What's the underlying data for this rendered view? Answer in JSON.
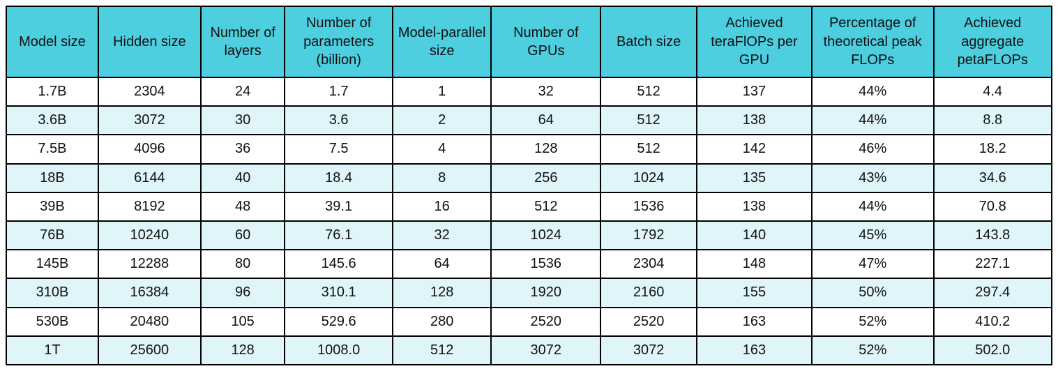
{
  "table": {
    "columns": [
      "Model size",
      "Hidden size",
      "Number of layers",
      "Number of parameters (billion)",
      "Model-parallel size",
      "Number of GPUs",
      "Batch size",
      "Achieved teraFlOPs per GPU",
      "Percentage of theoretical peak FLOPs",
      "Achieved aggregate petaFLOPs"
    ],
    "rows": [
      [
        "1.7B",
        "2304",
        "24",
        "1.7",
        "1",
        "32",
        "512",
        "137",
        "44%",
        "4.4"
      ],
      [
        "3.6B",
        "3072",
        "30",
        "3.6",
        "2",
        "64",
        "512",
        "138",
        "44%",
        "8.8"
      ],
      [
        "7.5B",
        "4096",
        "36",
        "7.5",
        "4",
        "128",
        "512",
        "142",
        "46%",
        "18.2"
      ],
      [
        "18B",
        "6144",
        "40",
        "18.4",
        "8",
        "256",
        "1024",
        "135",
        "43%",
        "34.6"
      ],
      [
        "39B",
        "8192",
        "48",
        "39.1",
        "16",
        "512",
        "1536",
        "138",
        "44%",
        "70.8"
      ],
      [
        "76B",
        "10240",
        "60",
        "76.1",
        "32",
        "1024",
        "1792",
        "140",
        "45%",
        "143.8"
      ],
      [
        "145B",
        "12288",
        "80",
        "145.6",
        "64",
        "1536",
        "2304",
        "148",
        "47%",
        "227.1"
      ],
      [
        "310B",
        "16384",
        "96",
        "310.1",
        "128",
        "1920",
        "2160",
        "155",
        "50%",
        "297.4"
      ],
      [
        "530B",
        "20480",
        "105",
        "529.6",
        "280",
        "2520",
        "2520",
        "163",
        "52%",
        "410.2"
      ],
      [
        "1T",
        "25600",
        "128",
        "1008.0",
        "512",
        "3072",
        "3072",
        "163",
        "52%",
        "502.0"
      ]
    ]
  },
  "colors": {
    "header_bg": "#4DCFE0",
    "stripe_bg": "#E0F5F9",
    "border": "#000000"
  }
}
